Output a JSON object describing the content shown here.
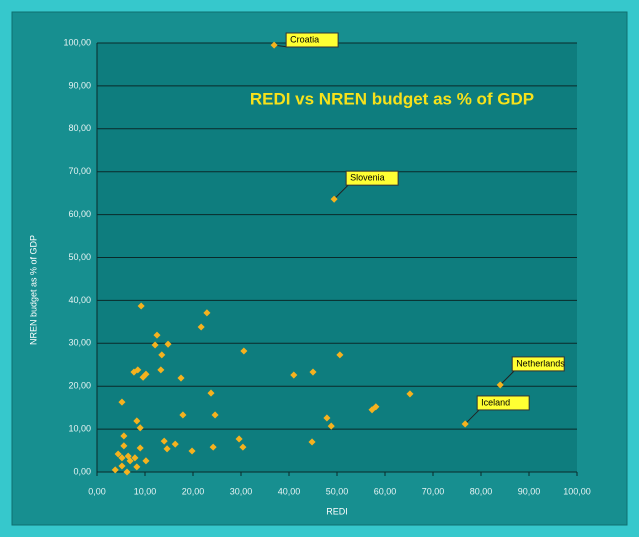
{
  "chart_data": {
    "type": "scatter",
    "title": "REDI vs NREN budget as % of GDP",
    "x_label": "REDI",
    "y_label": "NREN budget as % of GDP",
    "color": "#f5b21e",
    "x": [
      36.9,
      49.4,
      84,
      76.7,
      9.2,
      22.9,
      12.5,
      21.7,
      12.1,
      14.8,
      13.5,
      30.6,
      50.6,
      7.7,
      8.5,
      10.2,
      9.6,
      17.5,
      13.3,
      41,
      45,
      5.2,
      23.75,
      65.2,
      58.1,
      57.3,
      47.9,
      48.8,
      17.9,
      24.6,
      8.3,
      9,
      5.6,
      14,
      29.6,
      44.8,
      5.6,
      16.3,
      9,
      14.6,
      24.2,
      30.4,
      19.8,
      4.4,
      6.5,
      5.2,
      7.9,
      10.2,
      6.9,
      5.2,
      8.3,
      3.8,
      6.25
    ],
    "values": [
      99.5,
      63.6,
      20.3,
      11.2,
      38.7,
      37.1,
      31.9,
      33.8,
      29.6,
      29.8,
      27.3,
      28.2,
      27.3,
      23.3,
      23.8,
      22.8,
      22.1,
      21.9,
      23.8,
      22.6,
      23.3,
      16.3,
      18.4,
      18.2,
      15.2,
      14.5,
      12.6,
      10.7,
      13.3,
      13.3,
      11.9,
      10.3,
      8.4,
      7.2,
      7.7,
      7,
      6.1,
      6.5,
      5.6,
      5.4,
      5.8,
      5.8,
      4.9,
      4.2,
      3.7,
      3.3,
      3.3,
      2.6,
      2.6,
      1.4,
      1.2,
      0.5,
      0
    ],
    "point_labels": [
      "Croatia",
      "Slovenia",
      "Netherlands",
      "Iceland",
      null,
      null,
      null,
      null,
      null,
      null,
      null,
      null,
      null,
      null,
      null,
      null,
      null,
      null,
      null,
      null,
      null,
      null,
      null,
      null,
      null,
      null,
      null,
      null,
      null,
      null,
      null,
      null,
      null,
      null,
      null,
      null,
      null,
      null,
      null,
      null,
      null,
      null,
      null,
      null,
      null,
      null,
      null,
      null,
      null,
      null,
      null,
      null,
      null
    ],
    "xlim": [
      0,
      100
    ],
    "ylim": [
      0,
      100
    ],
    "xticks": [
      {
        "value": 0,
        "label": "0,00"
      },
      {
        "value": 10,
        "label": "10,00"
      },
      {
        "value": 20,
        "label": "20,00"
      },
      {
        "value": 30,
        "label": "30,00"
      },
      {
        "value": 40,
        "label": "40,00"
      },
      {
        "value": 50,
        "label": "50,00"
      },
      {
        "value": 60,
        "label": "60,00"
      },
      {
        "value": 70,
        "label": "70,00"
      },
      {
        "value": 80,
        "label": "80,00"
      },
      {
        "value": 90,
        "label": "90,00"
      },
      {
        "value": 100,
        "label": "100,00"
      }
    ],
    "yticks": [
      {
        "value": 0,
        "label": "0,00"
      },
      {
        "value": 10,
        "label": "10,00"
      },
      {
        "value": 20,
        "label": "20,00"
      },
      {
        "value": 30,
        "label": "30,00"
      },
      {
        "value": 40,
        "label": "40,00"
      },
      {
        "value": 50,
        "label": "50,00"
      },
      {
        "value": 60,
        "label": "60,00"
      },
      {
        "value": 70,
        "label": "70,00"
      },
      {
        "value": 80,
        "label": "80,00"
      },
      {
        "value": 90,
        "label": "90,00"
      },
      {
        "value": 100,
        "label": "100,00"
      }
    ],
    "grid": true
  }
}
